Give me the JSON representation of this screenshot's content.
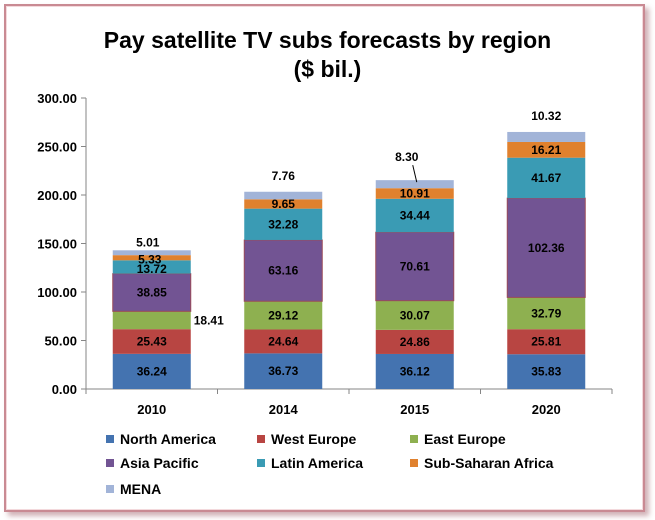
{
  "chart_data": {
    "type": "bar",
    "stacked": true,
    "title": "Pay satellite TV subs forecasts by region",
    "subtitle": "($ bil.)",
    "categories": [
      "2010",
      "2014",
      "2015",
      "2020"
    ],
    "ylim": [
      0,
      300
    ],
    "yticks": [
      "0.00",
      "50.00",
      "100.00",
      "150.00",
      "200.00",
      "250.00",
      "300.00"
    ],
    "xlabel": "",
    "ylabel": "",
    "grid": false,
    "legend_position": "bottom",
    "series": [
      {
        "name": "North America",
        "color": "#4473b0",
        "values": [
          36.24,
          36.73,
          36.12,
          35.83
        ],
        "labels": [
          "36.24",
          "36.73",
          "36.12",
          "35.83"
        ]
      },
      {
        "name": "West Europe",
        "color": "#b84542",
        "values": [
          25.43,
          24.64,
          24.86,
          25.81
        ],
        "labels": [
          "25.43",
          "24.64",
          "24.86",
          "25.81"
        ]
      },
      {
        "name": "East Europe",
        "color": "#8eb050",
        "values": [
          18.41,
          29.12,
          30.07,
          32.79
        ],
        "labels": [
          "18.41",
          "29.12",
          "30.07",
          "32.79"
        ]
      },
      {
        "name": "Asia Pacific",
        "color": "#725493",
        "values": [
          38.85,
          63.16,
          70.61,
          102.36
        ],
        "labels": [
          "38.85",
          "63.16",
          "70.61",
          "102.36"
        ]
      },
      {
        "name": "Latin America",
        "color": "#3a9bb4",
        "values": [
          13.72,
          32.28,
          34.44,
          41.67
        ],
        "labels": [
          "13.72",
          "32.28",
          "34.44",
          "41.67"
        ]
      },
      {
        "name": "Sub-Saharan Africa",
        "color": "#e0812e",
        "values": [
          5.33,
          9.65,
          10.91,
          16.21
        ],
        "labels": [
          "5.33",
          "9.65",
          "10.91",
          "16.21"
        ]
      },
      {
        "name": "MENA",
        "color": "#a2b4d8",
        "values": [
          5.01,
          7.76,
          8.3,
          10.32
        ],
        "labels": [
          "5.01",
          "7.76",
          "8.30",
          "10.32"
        ]
      }
    ]
  }
}
